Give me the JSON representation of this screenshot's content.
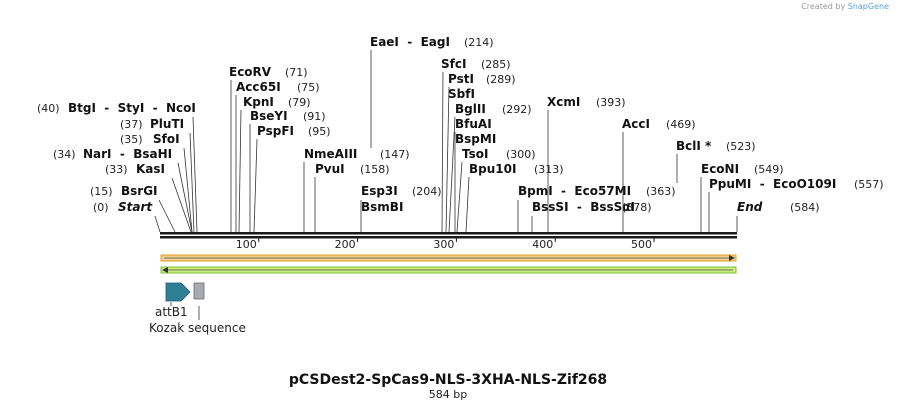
{
  "credit": {
    "prefix": "Created by",
    "brand": "SnapGene"
  },
  "plasmid": {
    "name": "pCSDest2-SpCas9-NLS-3XHA-NLS-Zif268",
    "length_label": "584 bp",
    "length": 584
  },
  "ruler": {
    "ticks": [
      100,
      200,
      300,
      400,
      500
    ]
  },
  "sites": [
    {
      "label": "BtgI  -  StyI  -  NcoI",
      "pos": "(40)",
      "bp": 40,
      "side": "left",
      "parts": [
        "BtgI",
        "StyI",
        "NcoI"
      ]
    },
    {
      "label": "PluTI",
      "pos": "(37)",
      "bp": 37,
      "side": "left"
    },
    {
      "label": "SfoI",
      "pos": "(35)",
      "bp": 35,
      "side": "left"
    },
    {
      "label": "NarI  -  BsaHI",
      "pos": "(34)",
      "bp": 34,
      "side": "left",
      "parts": [
        "NarI",
        "BsaHI"
      ]
    },
    {
      "label": "KasI",
      "pos": "(33)",
      "bp": 33,
      "side": "left"
    },
    {
      "label": "BsrGI",
      "pos": "(15)",
      "bp": 15,
      "side": "left"
    },
    {
      "label": "Start",
      "pos": "(0)",
      "bp": 0,
      "side": "left",
      "italic": true
    },
    {
      "label": "EcoRV",
      "pos": "(71)",
      "bp": 71
    },
    {
      "label": "Acc65I",
      "pos": "(75)",
      "bp": 75
    },
    {
      "label": "KpnI",
      "pos": "(79)",
      "bp": 79
    },
    {
      "label": "BseYI",
      "pos": "(91)",
      "bp": 91
    },
    {
      "label": "PspFI",
      "pos": "(95)",
      "bp": 95
    },
    {
      "label": "NmeAIII",
      "pos": "(147)",
      "bp": 147
    },
    {
      "label": "PvuI",
      "pos": "(158)",
      "bp": 158
    },
    {
      "label": "EaeI  -  EagI",
      "pos": "(214)",
      "bp": 214,
      "parts": [
        "EaeI",
        "EagI"
      ]
    },
    {
      "label": "Esp3I",
      "pos": "(204)",
      "bp": 204,
      "side": "left"
    },
    {
      "label": "BsmBI",
      "pos": "",
      "bp": 204,
      "side": "left"
    },
    {
      "label": "SfcI",
      "pos": "(285)",
      "bp": 285
    },
    {
      "label": "PstI",
      "pos": "(289)",
      "bp": 289
    },
    {
      "label": "SbfI",
      "pos": "",
      "bp": 289
    },
    {
      "label": "BglII",
      "pos": "(292)",
      "bp": 292
    },
    {
      "label": "BfuAI",
      "pos": "",
      "bp": 298
    },
    {
      "label": "BspMI",
      "pos": "",
      "bp": 298
    },
    {
      "label": "TsoI",
      "pos": "(300)",
      "bp": 300
    },
    {
      "label": "Bpu10I",
      "pos": "(313)",
      "bp": 313
    },
    {
      "label": "XcmI",
      "pos": "(393)",
      "bp": 393
    },
    {
      "label": "BpmI  -  Eco57MI",
      "pos": "(363)",
      "bp": 363,
      "parts": [
        "BpmI",
        "Eco57MI"
      ]
    },
    {
      "label": "BssSI  -  BssSαI",
      "pos": "(378)",
      "bp": 378,
      "parts": [
        "BssSI",
        "BssSαI"
      ]
    },
    {
      "label": "AccI",
      "pos": "(469)",
      "bp": 469
    },
    {
      "label": "BclI *",
      "pos": "(523)",
      "bp": 523
    },
    {
      "label": "EcoNI",
      "pos": "(549)",
      "bp": 549
    },
    {
      "label": "PpuMI  -  EcoO109I",
      "pos": "(557)",
      "bp": 557,
      "parts": [
        "PpuMI",
        "EcoO109I"
      ]
    },
    {
      "label": "End",
      "pos": "(584)",
      "bp": 584,
      "italic": true
    }
  ],
  "features": [
    {
      "name": "attB1",
      "type": "arrow",
      "color": "#2f7f93"
    },
    {
      "name": "Kozak sequence",
      "type": "box",
      "color": "#a9a9b2"
    }
  ],
  "bars": [
    {
      "name": "orange-orf-bar",
      "color": "#e49a2b",
      "fill": "#f5d08a",
      "direction": "forward"
    },
    {
      "name": "green-orf-bar",
      "color": "#7cc23c",
      "fill": "#c9ec7a",
      "direction": "reverse"
    }
  ],
  "colors": {
    "backbone": "#1a1a1a",
    "line": "#333333"
  }
}
